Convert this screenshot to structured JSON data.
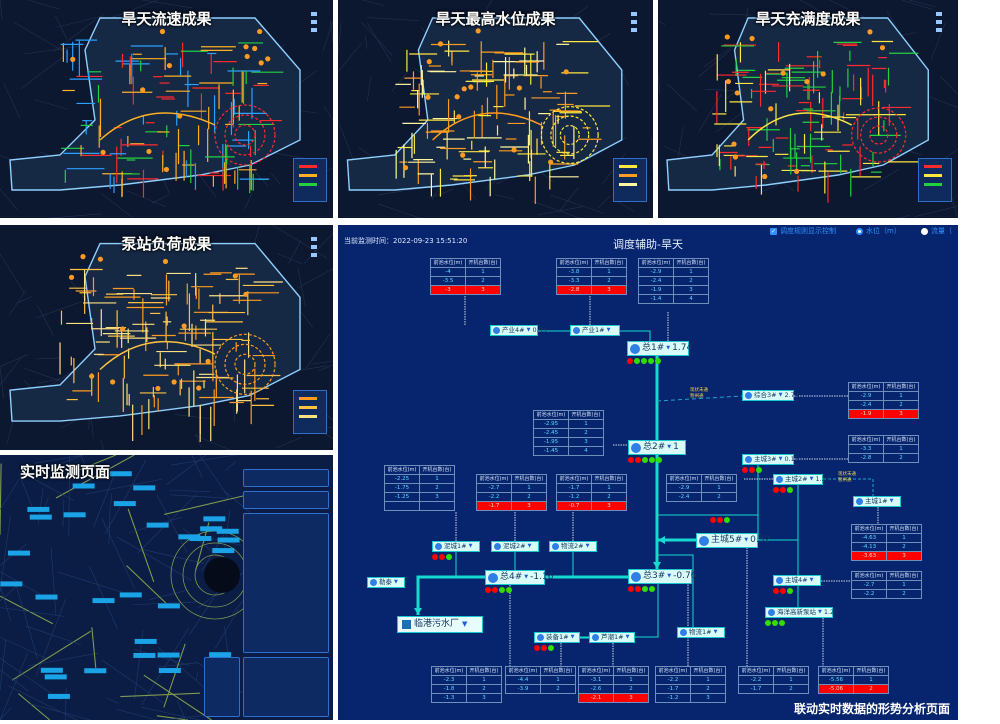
{
  "panels": {
    "flow": {
      "title": "旱天流速成果",
      "colors": [
        "#ff2a2a",
        "#ffb020",
        "#22d040",
        "#2aa0ff"
      ]
    },
    "level": {
      "title": "旱天最高水位成果",
      "colors": [
        "#ffe640",
        "#ff9a20",
        "#fff6a0"
      ]
    },
    "fill": {
      "title": "旱天充满度成果",
      "colors": [
        "#ff2a2a",
        "#ffe640",
        "#22d040"
      ]
    },
    "pump": {
      "title": "泵站负荷成果",
      "colors": [
        "#ff9a20",
        "#ffc040",
        "#ffe080"
      ]
    },
    "monitor": {
      "title": "实时监测页面"
    }
  },
  "diagram": {
    "title": "调度辅助-旱天",
    "time_label": "当前监测时间：",
    "time_value": "2022-09-23 15:51:20",
    "controls": {
      "rule_toggle": "调度规则显示控制",
      "water_level": "水位（m）",
      "flow": "流量（"
    },
    "table_header": [
      "前池水位(m)",
      "开机台数(台)"
    ],
    "tables": [
      {
        "rows": [
          [
            "-4",
            "1"
          ],
          [
            "-3.5",
            "2"
          ],
          [
            "-3",
            "3"
          ]
        ],
        "red": 2
      },
      {
        "rows": [
          [
            "-3.8",
            "1"
          ],
          [
            "-3.3",
            "2"
          ],
          [
            "-2.8",
            "3"
          ]
        ],
        "red": 2
      },
      {
        "rows": [
          [
            "-2.9",
            "1"
          ],
          [
            "-2.4",
            "2"
          ],
          [
            "-1.9",
            "3"
          ],
          [
            "-1.4",
            "4"
          ]
        ],
        "red": -1
      },
      {
        "rows": [
          [
            "-2.95",
            "1"
          ],
          [
            "-2.45",
            "2"
          ],
          [
            "-1.95",
            "3"
          ],
          [
            "-1.45",
            "4"
          ]
        ],
        "red": -1
      },
      {
        "rows": [
          [
            "-2.9",
            "1"
          ],
          [
            "-2.4",
            "2"
          ],
          [
            "-1.9",
            "3"
          ]
        ],
        "red": 2
      },
      {
        "rows": [
          [
            "-3.3",
            "1"
          ],
          [
            "-2.8",
            "2"
          ]
        ],
        "red": -1
      },
      {
        "rows": [
          [
            "-2.25",
            "1"
          ],
          [
            "-1.75",
            "2"
          ],
          [
            "-1.25",
            "3"
          ],
          [
            "",
            ""
          ]
        ],
        "red": -1
      },
      {
        "rows": [
          [
            "-2.7",
            "1"
          ],
          [
            "-2.2",
            "2"
          ],
          [
            "-1.7",
            "3"
          ]
        ],
        "red": 2
      },
      {
        "rows": [
          [
            "-1.7",
            "1"
          ],
          [
            "-1.2",
            "2"
          ],
          [
            "-0.7",
            "3"
          ]
        ],
        "red": 2
      },
      {
        "rows": [
          [
            "-2.9",
            "1"
          ],
          [
            "-2.4",
            "2"
          ]
        ],
        "red": -1
      },
      {
        "rows": [
          [
            "-4.63",
            "1"
          ],
          [
            "-4.13",
            "2"
          ],
          [
            "-3.63",
            "3"
          ]
        ],
        "red": 2
      },
      {
        "rows": [
          [
            "-2.7",
            "1"
          ],
          [
            "-2.2",
            "2"
          ]
        ],
        "red": -1
      },
      {
        "rows": [
          [
            "-2.3",
            "1"
          ],
          [
            "-1.8",
            "2"
          ],
          [
            "-1.3",
            "3"
          ]
        ],
        "red": -1
      },
      {
        "rows": [
          [
            "-4.4",
            "1"
          ],
          [
            "-3.9",
            "2"
          ]
        ],
        "red": -1
      },
      {
        "rows": [
          [
            "-3.1",
            "1"
          ],
          [
            "-2.6",
            "2"
          ],
          [
            "-2.1",
            "3"
          ]
        ],
        "red": 2
      },
      {
        "rows": [
          [
            "-2.2",
            "1"
          ],
          [
            "-1.7",
            "2"
          ],
          [
            "-1.2",
            "3"
          ]
        ],
        "red": -1
      },
      {
        "rows": [
          [
            "-2.2",
            "1"
          ],
          [
            "-1.7",
            "2"
          ]
        ],
        "red": -1
      },
      {
        "rows": [
          [
            "-5.56",
            "1"
          ],
          [
            "-5.06",
            "2"
          ]
        ],
        "red": 1
      }
    ],
    "nodes": [
      {
        "id": "cy4",
        "name": "产业4#",
        "value": "0.99"
      },
      {
        "id": "cy1",
        "name": "产业1#",
        "value": ""
      },
      {
        "id": "z1",
        "name": "总1#",
        "value": "1.74",
        "status": [
          "r",
          "g",
          "g",
          "g",
          "g"
        ]
      },
      {
        "id": "z2",
        "name": "总2#",
        "value": "1",
        "status": [
          "r",
          "r",
          "g",
          "g",
          "g"
        ]
      },
      {
        "id": "zh3",
        "name": "综合3#",
        "value": "2.74"
      },
      {
        "id": "zc3",
        "name": "主城3#",
        "value": "0.15",
        "status": [
          "r",
          "r",
          "g"
        ]
      },
      {
        "id": "zc2",
        "name": "主城2#",
        "value": "1.26",
        "status": [
          "r",
          "r",
          "g"
        ]
      },
      {
        "id": "zc1",
        "name": "主城1#",
        "value": ""
      },
      {
        "id": "zc5",
        "name": "主城5#",
        "value": "0.32",
        "status": [
          "r",
          "r",
          "g"
        ]
      },
      {
        "id": "zc4",
        "name": "主城4#",
        "value": "",
        "status": [
          "r",
          "r",
          "g"
        ]
      },
      {
        "id": "hy",
        "name": "海洋高新泵站",
        "value": "1.29",
        "status": [
          "g",
          "g",
          "g"
        ]
      },
      {
        "id": "z3",
        "name": "总3#",
        "value": "-0.76",
        "status": [
          "r",
          "r",
          "g",
          "g"
        ]
      },
      {
        "id": "z4",
        "name": "总4#",
        "value": "-1.16",
        "status": [
          "r",
          "r",
          "g",
          "g"
        ]
      },
      {
        "id": "nc1",
        "name": "泥城1#",
        "value": "",
        "status": [
          "r",
          "r",
          "g"
        ]
      },
      {
        "id": "nc2",
        "name": "泥城2#",
        "value": ""
      },
      {
        "id": "wl2",
        "name": "物流2#",
        "value": ""
      },
      {
        "id": "wl1",
        "name": "物流1#",
        "value": ""
      },
      {
        "id": "lt",
        "name": "勒泰",
        "value": ""
      },
      {
        "id": "zb1",
        "name": "装备1#",
        "value": "",
        "status": [
          "r",
          "r",
          "g"
        ]
      },
      {
        "id": "lc1",
        "name": "芦潮1#",
        "value": ""
      }
    ],
    "plant": "临港污水厂",
    "notes": [
      "现状未通\n暂闸通",
      "现状未通\n暂闸通"
    ],
    "caption": "联动实时数据的形势分析页面",
    "colors": {
      "pipe": "#18d9cf",
      "alarm": "#ff0000",
      "ok": "#33dd00",
      "background": "#06256e"
    }
  }
}
